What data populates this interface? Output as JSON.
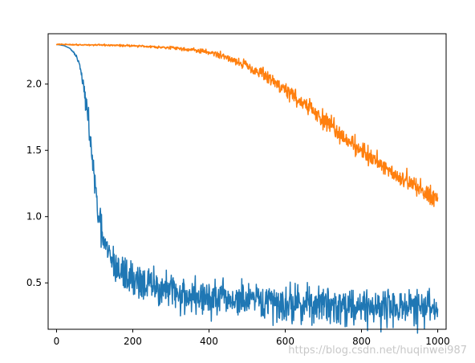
{
  "chart_data": {
    "type": "line",
    "title": "",
    "xlabel": "",
    "ylabel": "",
    "xlim": [
      -22,
      1022
    ],
    "ylim": [
      0.15,
      2.38
    ],
    "x_ticks": [
      0,
      200,
      400,
      600,
      800,
      1000
    ],
    "y_ticks": [
      0.5,
      1.0,
      1.5,
      2.0
    ],
    "x_tick_labels": [
      "0",
      "200",
      "400",
      "600",
      "800",
      "1000"
    ],
    "y_tick_labels": [
      "0.5",
      "1.0",
      "1.5",
      "2.0"
    ],
    "grid": false,
    "legend": false,
    "series": [
      {
        "color": "#1f77b4",
        "x": [
          0,
          20,
          35,
          50,
          60,
          70,
          80,
          90,
          100,
          110,
          120,
          130,
          140,
          150,
          160,
          180,
          200,
          220,
          250,
          280,
          300,
          350,
          400,
          450,
          500,
          550,
          600,
          650,
          700,
          750,
          800,
          850,
          900,
          950,
          1000
        ],
        "y": [
          2.3,
          2.29,
          2.27,
          2.22,
          2.15,
          2.0,
          1.8,
          1.55,
          1.25,
          1.0,
          0.85,
          0.75,
          0.7,
          0.65,
          0.6,
          0.56,
          0.53,
          0.51,
          0.47,
          0.45,
          0.43,
          0.4,
          0.38,
          0.37,
          0.36,
          0.35,
          0.345,
          0.34,
          0.335,
          0.33,
          0.325,
          0.32,
          0.32,
          0.31,
          0.31
        ],
        "noise": [
          0,
          0,
          0,
          0.005,
          0.01,
          0.02,
          0.04,
          0.05,
          0.06,
          0.06,
          0.06,
          0.06,
          0.06,
          0.07,
          0.07,
          0.07,
          0.07,
          0.07,
          0.07,
          0.07,
          0.07,
          0.07,
          0.07,
          0.07,
          0.07,
          0.07,
          0.07,
          0.07,
          0.07,
          0.07,
          0.07,
          0.07,
          0.07,
          0.07,
          0.07
        ]
      },
      {
        "color": "#ff7f0e",
        "x": [
          0,
          100,
          200,
          300,
          350,
          400,
          450,
          500,
          550,
          600,
          650,
          700,
          750,
          800,
          850,
          900,
          950,
          1000
        ],
        "y": [
          2.3,
          2.295,
          2.29,
          2.275,
          2.26,
          2.24,
          2.2,
          2.14,
          2.06,
          1.96,
          1.85,
          1.73,
          1.61,
          1.5,
          1.4,
          1.3,
          1.21,
          1.14
        ],
        "noise": [
          0.002,
          0.003,
          0.004,
          0.005,
          0.008,
          0.01,
          0.015,
          0.02,
          0.025,
          0.03,
          0.03,
          0.035,
          0.035,
          0.035,
          0.035,
          0.035,
          0.04,
          0.04
        ]
      }
    ]
  },
  "watermark": {
    "text": "https://blog.csdn.net/huqinwei987"
  }
}
